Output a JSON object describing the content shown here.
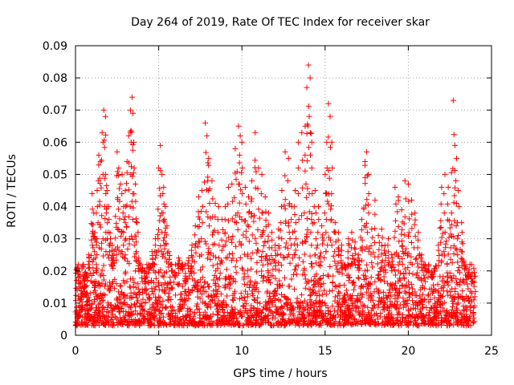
{
  "chart_data": {
    "type": "scatter",
    "title": "Day 264 of 2019, Rate Of TEC Index for receiver skar",
    "xlabel": "GPS time / hours",
    "ylabel": "ROTI / TECUs",
    "xlim": [
      0,
      25
    ],
    "ylim": [
      0,
      0.09
    ],
    "xticks": [
      0,
      5,
      10,
      15,
      20,
      25
    ],
    "yticks": [
      0,
      0.01,
      0.02,
      0.03,
      0.04,
      0.05,
      0.06,
      0.07,
      0.08,
      0.09
    ],
    "xtick_labels": [
      "0",
      "5",
      "10",
      "15",
      "20",
      "25"
    ],
    "ytick_labels": [
      "0",
      "0.01",
      "0.02",
      "0.03",
      "0.04",
      "0.05",
      "0.06",
      "0.07",
      "0.08",
      "0.09"
    ],
    "grid": true,
    "marker": "+",
    "color": "#ff0000",
    "series": [
      {
        "name": "ROTI",
        "x": [
          0.1,
          0.2,
          0.3,
          0.4,
          0.5,
          0.6,
          0.8,
          1.0,
          1.1,
          1.2,
          1.3,
          1.4,
          1.5,
          1.6,
          1.7,
          1.8,
          1.8,
          1.9,
          2.0,
          2.1,
          2.2,
          2.3,
          2.4,
          2.5,
          2.6,
          2.7,
          2.8,
          2.9,
          3.0,
          3.1,
          3.2,
          3.3,
          3.4,
          3.45,
          3.5,
          3.6,
          3.7,
          3.8,
          4.0,
          4.2,
          4.4,
          4.6,
          4.8,
          5.0,
          5.1,
          5.2,
          5.3,
          5.4,
          5.5,
          5.6,
          5.8,
          6.0,
          6.2,
          6.4,
          6.6,
          6.8,
          7.0,
          7.2,
          7.4,
          7.6,
          7.8,
          7.9,
          8.0,
          8.2,
          8.4,
          8.6,
          8.8,
          9.0,
          9.2,
          9.4,
          9.6,
          9.8,
          9.9,
          10.0,
          10.2,
          10.4,
          10.6,
          10.8,
          11.0,
          11.2,
          11.4,
          11.6,
          11.8,
          12.0,
          12.2,
          12.4,
          12.6,
          12.8,
          13.0,
          13.2,
          13.4,
          13.6,
          13.8,
          13.9,
          14.0,
          14.1,
          14.2,
          14.4,
          14.6,
          14.8,
          15.0,
          15.1,
          15.2,
          15.3,
          15.4,
          15.6,
          15.8,
          16.0,
          16.2,
          16.4,
          16.6,
          16.8,
          17.0,
          17.2,
          17.4,
          17.5,
          17.6,
          17.8,
          18.0,
          18.2,
          18.4,
          18.6,
          18.8,
          19.0,
          19.2,
          19.4,
          19.6,
          19.8,
          20.0,
          20.2,
          20.4,
          20.6,
          20.8,
          21.0,
          21.2,
          21.4,
          21.6,
          21.8,
          22.0,
          22.2,
          22.4,
          22.6,
          22.7,
          22.8,
          22.9,
          23.0,
          23.2,
          23.4,
          23.6,
          23.8,
          24.0
        ],
        "y": [
          0.021,
          0.015,
          0.011,
          0.008,
          0.012,
          0.018,
          0.025,
          0.044,
          0.038,
          0.03,
          0.045,
          0.056,
          0.054,
          0.063,
          0.07,
          0.068,
          0.05,
          0.045,
          0.04,
          0.03,
          0.028,
          0.024,
          0.037,
          0.057,
          0.052,
          0.047,
          0.05,
          0.04,
          0.045,
          0.054,
          0.062,
          0.07,
          0.074,
          0.069,
          0.06,
          0.047,
          0.035,
          0.024,
          0.02,
          0.016,
          0.022,
          0.026,
          0.03,
          0.052,
          0.059,
          0.05,
          0.046,
          0.04,
          0.034,
          0.026,
          0.02,
          0.018,
          0.024,
          0.022,
          0.016,
          0.024,
          0.028,
          0.034,
          0.043,
          0.045,
          0.066,
          0.062,
          0.055,
          0.048,
          0.041,
          0.04,
          0.036,
          0.04,
          0.046,
          0.047,
          0.058,
          0.065,
          0.062,
          0.06,
          0.046,
          0.043,
          0.048,
          0.063,
          0.052,
          0.05,
          0.043,
          0.038,
          0.032,
          0.028,
          0.033,
          0.045,
          0.057,
          0.055,
          0.04,
          0.045,
          0.06,
          0.063,
          0.065,
          0.077,
          0.084,
          0.08,
          0.06,
          0.045,
          0.04,
          0.034,
          0.05,
          0.06,
          0.072,
          0.068,
          0.06,
          0.035,
          0.032,
          0.028,
          0.022,
          0.03,
          0.032,
          0.029,
          0.025,
          0.036,
          0.054,
          0.057,
          0.05,
          0.033,
          0.042,
          0.031,
          0.033,
          0.028,
          0.03,
          0.025,
          0.046,
          0.043,
          0.039,
          0.048,
          0.047,
          0.042,
          0.038,
          0.032,
          0.025,
          0.022,
          0.02,
          0.018,
          0.02,
          0.028,
          0.046,
          0.05,
          0.046,
          0.038,
          0.073,
          0.059,
          0.055,
          0.045,
          0.035,
          0.022,
          0.018,
          0.016,
          0.012
        ]
      }
    ],
    "noise_floor": [
      0.003,
      0.022
    ]
  }
}
